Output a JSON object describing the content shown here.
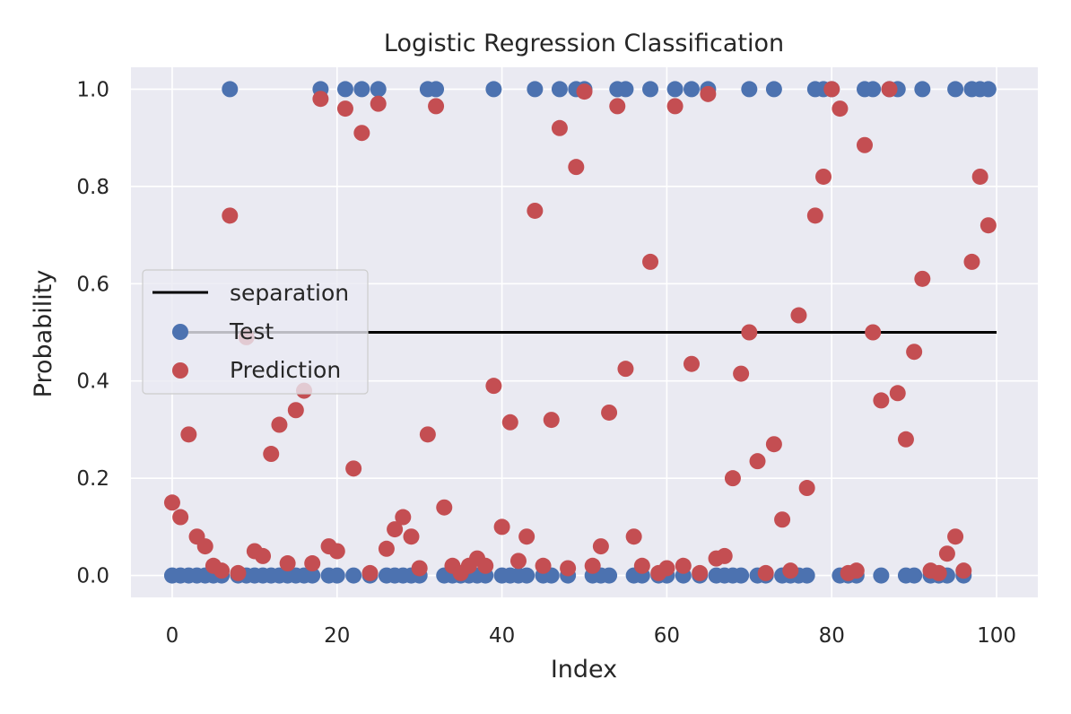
{
  "chart_data": {
    "type": "scatter",
    "title": "Logistic Regression Classification",
    "xlabel": "Index",
    "ylabel": "Probability",
    "xlim": [
      -5,
      105
    ],
    "ylim": [
      -0.045,
      1.045
    ],
    "xticks": [
      0,
      20,
      40,
      60,
      80,
      100
    ],
    "xtick_labels": [
      "0",
      "20",
      "40",
      "60",
      "80",
      "100"
    ],
    "yticks": [
      0.0,
      0.2,
      0.4,
      0.6,
      0.8,
      1.0
    ],
    "ytick_labels": [
      "0.0",
      "0.2",
      "0.4",
      "0.6",
      "0.8",
      "1.0"
    ],
    "grid": true,
    "background": "#eaeaf2",
    "legend_position": "center-left",
    "lines": [
      {
        "name": "separation",
        "color": "#000000",
        "x": [
          0,
          100
        ],
        "y": [
          0.5,
          0.5
        ]
      }
    ],
    "series": [
      {
        "name": "Test",
        "color": "#4c72b0",
        "x": [
          0,
          1,
          2,
          3,
          4,
          5,
          6,
          7,
          8,
          9,
          10,
          11,
          12,
          13,
          14,
          15,
          16,
          17,
          18,
          19,
          20,
          21,
          22,
          23,
          24,
          25,
          26,
          27,
          28,
          29,
          30,
          31,
          32,
          33,
          34,
          35,
          36,
          37,
          38,
          39,
          40,
          41,
          42,
          43,
          44,
          45,
          46,
          47,
          48,
          49,
          50,
          51,
          52,
          53,
          54,
          55,
          56,
          57,
          58,
          59,
          60,
          61,
          62,
          63,
          64,
          65,
          66,
          67,
          68,
          69,
          70,
          71,
          72,
          73,
          74,
          75,
          76,
          77,
          78,
          79,
          80,
          81,
          82,
          83,
          84,
          85,
          86,
          87,
          88,
          89,
          90,
          91,
          92,
          93,
          94,
          95,
          96,
          97,
          98,
          99
        ],
        "y": [
          0,
          0,
          0,
          0,
          0,
          0,
          0,
          1,
          0,
          0,
          0,
          0,
          0,
          0,
          0,
          0,
          0,
          0,
          1,
          0,
          0,
          1,
          0,
          1,
          0,
          1,
          0,
          0,
          0,
          0,
          0,
          1,
          1,
          0,
          0,
          0,
          0,
          0,
          0,
          1,
          0,
          0,
          0,
          0,
          1,
          0,
          0,
          1,
          0,
          1,
          1,
          0,
          0,
          0,
          1,
          1,
          0,
          0,
          1,
          0,
          0,
          1,
          0,
          1,
          0,
          1,
          0,
          0,
          0,
          0,
          1,
          0,
          0,
          1,
          0,
          0,
          0,
          0,
          1,
          1,
          1,
          0,
          0,
          0,
          1,
          1,
          0,
          1,
          1,
          0,
          0,
          1,
          0,
          0,
          0,
          1,
          0,
          1,
          1,
          1
        ]
      },
      {
        "name": "Prediction",
        "color": "#c44e52",
        "x": [
          0,
          1,
          2,
          3,
          4,
          5,
          6,
          7,
          8,
          9,
          10,
          11,
          12,
          13,
          14,
          15,
          16,
          17,
          18,
          19,
          20,
          21,
          22,
          23,
          24,
          25,
          26,
          27,
          28,
          29,
          30,
          31,
          32,
          33,
          34,
          35,
          36,
          37,
          38,
          39,
          40,
          41,
          42,
          43,
          44,
          45,
          46,
          47,
          48,
          49,
          50,
          51,
          52,
          53,
          54,
          55,
          56,
          57,
          58,
          59,
          60,
          61,
          62,
          63,
          64,
          65,
          66,
          67,
          68,
          69,
          70,
          71,
          72,
          73,
          74,
          75,
          76,
          77,
          78,
          79,
          80,
          81,
          82,
          83,
          84,
          85,
          86,
          87,
          88,
          89,
          90,
          91,
          92,
          93,
          94,
          95,
          96,
          97,
          98,
          99
        ],
        "y": [
          0.15,
          0.12,
          0.29,
          0.08,
          0.06,
          0.02,
          0.01,
          0.74,
          0.005,
          0.49,
          0.05,
          0.04,
          0.25,
          0.31,
          0.025,
          0.34,
          0.38,
          0.025,
          0.98,
          0.06,
          0.05,
          0.96,
          0.22,
          0.91,
          0.005,
          0.97,
          0.055,
          0.095,
          0.12,
          0.08,
          0.015,
          0.29,
          0.965,
          0.14,
          0.02,
          0.005,
          0.02,
          0.035,
          0.02,
          0.39,
          0.1,
          0.315,
          0.03,
          0.08,
          0.75,
          0.02,
          0.32,
          0.92,
          0.015,
          0.84,
          0.995,
          0.02,
          0.06,
          0.335,
          0.965,
          0.425,
          0.08,
          0.02,
          0.645,
          0.005,
          0.015,
          0.965,
          0.02,
          0.435,
          0.005,
          0.99,
          0.035,
          0.04,
          0.2,
          0.415,
          0.5,
          0.235,
          0.005,
          0.27,
          0.115,
          0.01,
          0.535,
          0.18,
          0.74,
          0.82,
          1.0,
          0.96,
          0.005,
          0.01,
          0.885,
          0.5,
          0.36,
          1.0,
          0.375,
          0.28,
          0.46,
          0.61,
          0.01,
          0.005,
          0.045,
          0.08,
          0.01,
          0.645,
          0.82,
          0.72
        ]
      }
    ]
  }
}
